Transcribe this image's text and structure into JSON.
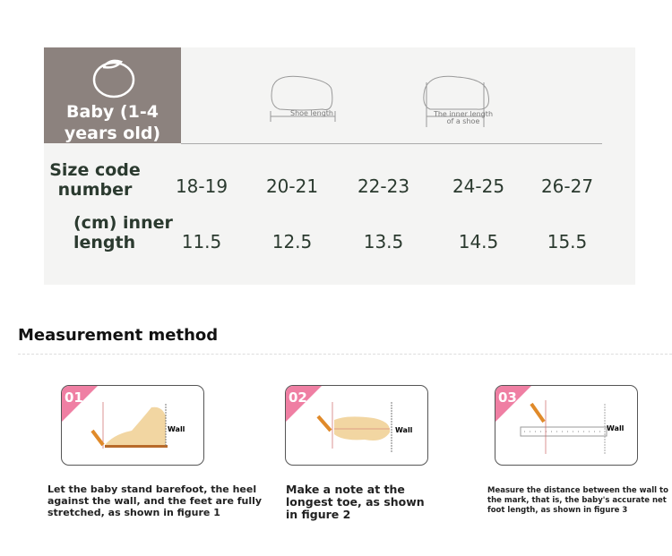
{
  "size_table": {
    "category": "Baby (1-4 years old)",
    "diagram_captions": [
      "Shoe length",
      "The inner length of a shoe"
    ],
    "row_labels": [
      "Size code number",
      "(cm) inner length"
    ],
    "size_codes": [
      "18-19",
      "20-21",
      "22-23",
      "24-25",
      "26-27"
    ],
    "inner_lengths": [
      "11.5",
      "12.5",
      "13.5",
      "14.5",
      "15.5"
    ]
  },
  "measurement": {
    "title": "Measurement method",
    "steps": [
      {
        "number": "01",
        "wall_label": "Wall",
        "text": "Let the baby stand barefoot, the heel against the wall, and the feet are fully stretched, as shown in figure 1"
      },
      {
        "number": "02",
        "wall_label": "Wall",
        "text": "Make a note at the longest toe, as shown in figure 2"
      },
      {
        "number": "03",
        "wall_label": "Wall",
        "text": "Measure the distance between the wall to the mark, that is, the baby's accurate net foot length, as shown in figure 3"
      }
    ]
  },
  "colors": {
    "accent_pink": "#ef7fa3",
    "header_brown": "#8c827e",
    "text_green": "#2b3a2f"
  }
}
